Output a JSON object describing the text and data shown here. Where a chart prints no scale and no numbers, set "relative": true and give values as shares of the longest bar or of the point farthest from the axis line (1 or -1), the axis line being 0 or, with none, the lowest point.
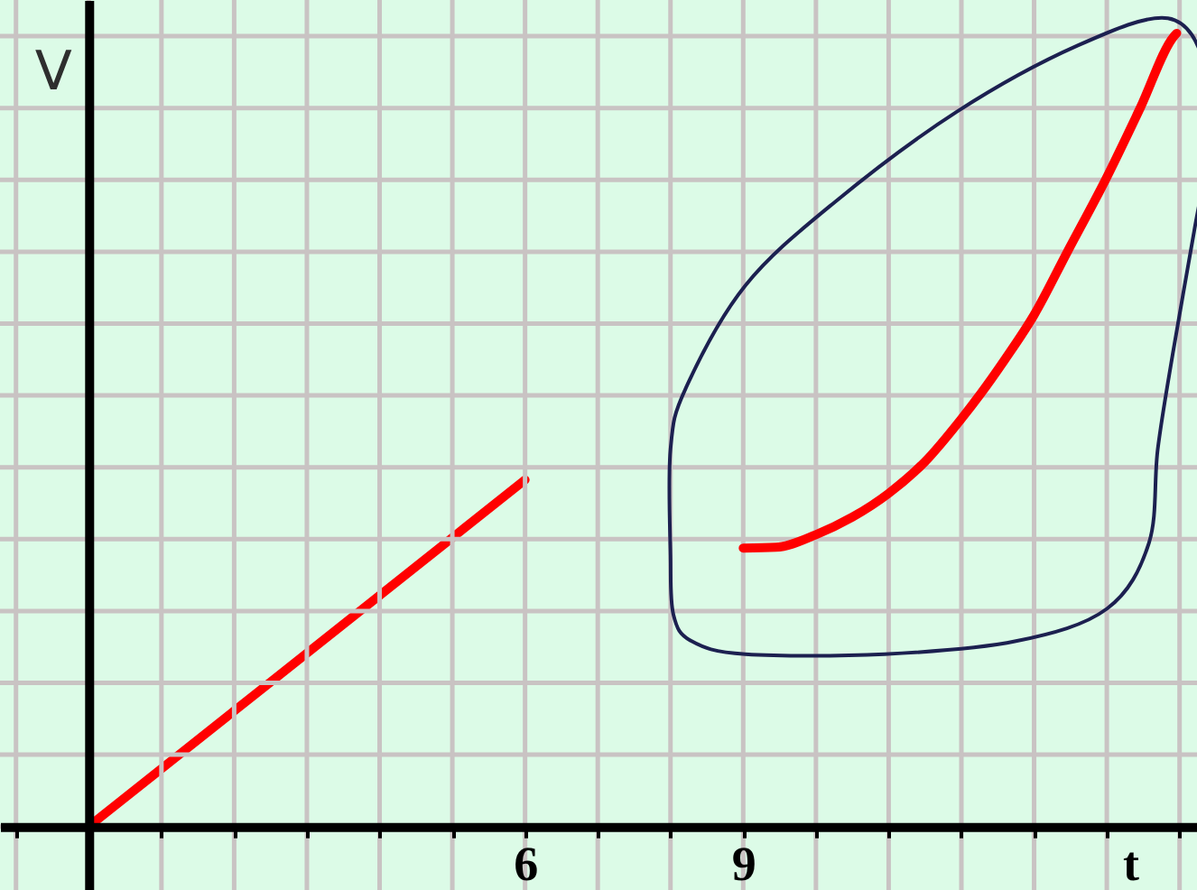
{
  "chart_data": {
    "type": "line",
    "xlabel": "t",
    "ylabel": "V",
    "xlim": [
      -1.22,
      15.24
    ],
    "xticks": [
      {
        "value": -1,
        "label": null
      },
      {
        "value": 0,
        "label": null
      },
      {
        "value": 1,
        "label": null
      },
      {
        "value": 2,
        "label": null
      },
      {
        "value": 3,
        "label": null
      },
      {
        "value": 4,
        "label": null
      },
      {
        "value": 5,
        "label": null
      },
      6,
      {
        "value": 7,
        "label": null
      },
      {
        "value": 8,
        "label": null
      },
      9,
      {
        "value": 10,
        "label": null
      },
      {
        "value": 11,
        "label": null
      },
      {
        "value": 12,
        "label": null
      },
      {
        "value": 13,
        "label": null
      },
      {
        "value": 14,
        "label": null
      },
      {
        "value": 15,
        "label": null
      }
    ],
    "relative": true,
    "grid": true,
    "series": [
      {
        "color": "#ff0000",
        "x": [
          0,
          6
        ],
        "values": [
          0,
          0.437
        ]
      },
      {
        "color": "#ff0000",
        "x": [
          9,
          9.45,
          10,
          10.5,
          11,
          11.5,
          12,
          12.26,
          12.6,
          13,
          13.46,
          13.98,
          14.46,
          14.92,
          14.96
        ],
        "values": [
          0.351,
          0.352,
          0.368,
          0.39,
          0.42,
          0.46,
          0.514,
          0.545,
          0.589,
          0.645,
          0.725,
          0.815,
          0.906,
          0.996,
          1
        ]
      }
    ]
  }
}
